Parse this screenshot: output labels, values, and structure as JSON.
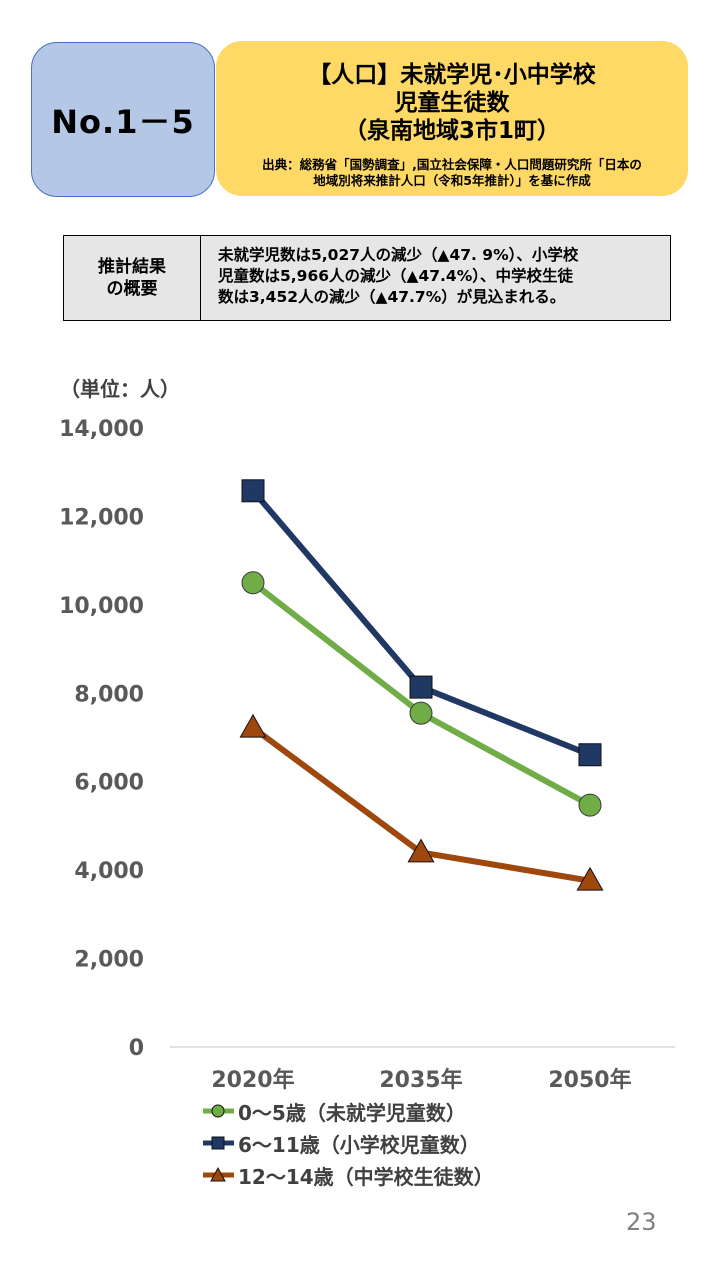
{
  "badge": "No.1－5",
  "header": {
    "title": "【人口】未就学児･小中学校\n児童生徒数\n（泉南地域3市1町）",
    "source": "出典：総務省「国勢調査」,国立社会保障・人口問題研究所「日本の\n地域別将来推計人口（令和5年推計）」を基に作成"
  },
  "summary": {
    "label": "推計結果\nの概要",
    "text": "未就学児数は5,027人の減少（▲47. 9%）、小学校\n児童数は5,966人の減少（▲47.4%）、中学校生徒\n数は3,452人の減少（▲47.7%）が見込まれる。"
  },
  "page_number": "23",
  "chart_data": {
    "type": "line",
    "unit_label": "（単位：人）",
    "categories": [
      "2020年",
      "2035年",
      "2050年"
    ],
    "ylim": [
      0,
      14000
    ],
    "yticks": [
      "0",
      "2,000",
      "4,000",
      "6,000",
      "8,000",
      "10,000",
      "12,000",
      "14,000"
    ],
    "legend_position": "bottom",
    "grid": false,
    "series": [
      {
        "name": "0～5歳（未就学児童数）",
        "values": [
          10500,
          7550,
          5470
        ],
        "color": "#70ad47",
        "marker": "circle"
      },
      {
        "name": "6～11歳（小学校児童数）",
        "values": [
          12580,
          8140,
          6610
        ],
        "color": "#203864",
        "marker": "square"
      },
      {
        "name": "12～14歳（中学校生徒数）",
        "values": [
          7220,
          4400,
          3760
        ],
        "color": "#9e480e",
        "marker": "triangle"
      }
    ]
  }
}
